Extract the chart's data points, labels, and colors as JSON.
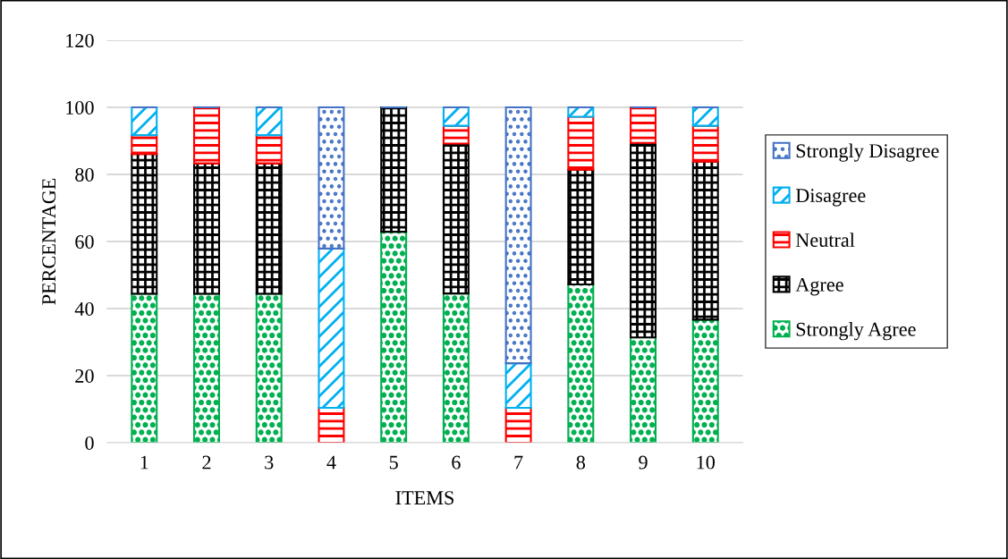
{
  "chart_data": {
    "type": "bar",
    "stacked": true,
    "xlabel": "ITEMS",
    "ylabel": "PERCENTAGE",
    "categories": [
      "1",
      "2",
      "3",
      "4",
      "5",
      "6",
      "7",
      "8",
      "9",
      "10"
    ],
    "series": [
      {
        "name": "Strongly Agree",
        "color": "#00b050",
        "values": [
          44.4,
          44.4,
          44.4,
          0,
          62.9,
          44.5,
          0,
          47.2,
          31.4,
          36.7
        ]
      },
      {
        "name": "Agree",
        "color": "#000000",
        "values": [
          41.7,
          38.9,
          38.9,
          0,
          37.1,
          44.7,
          0,
          34.2,
          58.0,
          47.1
        ]
      },
      {
        "name": "Neutral",
        "color": "#ff0000",
        "values": [
          5.6,
          16.7,
          8.4,
          10.4,
          0,
          5.3,
          10.4,
          15.8,
          10.6,
          10.7
        ]
      },
      {
        "name": "Disagree",
        "color": "#00b0f0",
        "values": [
          8.3,
          0,
          8.3,
          47.5,
          0,
          5.5,
          13.3,
          2.8,
          0,
          5.5
        ]
      },
      {
        "name": "Strongly Disagree",
        "color": "#4472c4",
        "values": [
          0,
          0,
          0,
          42.1,
          0,
          0,
          76.3,
          0,
          0,
          0
        ]
      }
    ],
    "ylim": [
      0,
      120
    ],
    "yticks": [
      0,
      20,
      40,
      60,
      80,
      100,
      120
    ],
    "grid": "y",
    "legend": "right"
  }
}
